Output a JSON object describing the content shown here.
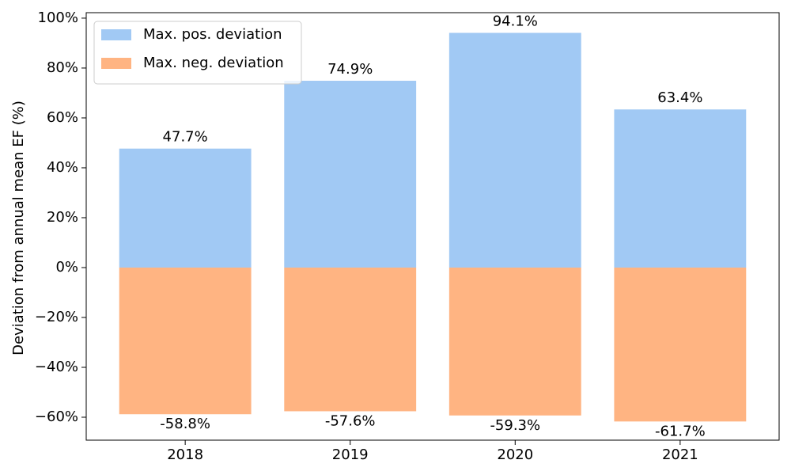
{
  "chart_data": {
    "type": "bar",
    "y_label": "Deviation from annual mean EF (%)",
    "categories": [
      "2018",
      "2019",
      "2020",
      "2021"
    ],
    "series": [
      {
        "name": "Max. pos. deviation",
        "color": "#a1c9f4",
        "values": [
          47.7,
          74.9,
          94.1,
          63.4
        ],
        "value_labels": [
          "47.7%",
          "74.9%",
          "94.1%",
          "63.4%"
        ]
      },
      {
        "name": "Max. neg. deviation",
        "color": "#ffb482",
        "values": [
          -58.8,
          -57.6,
          -59.3,
          -61.7
        ],
        "value_labels": [
          "-58.8%",
          "-57.6%",
          "-59.3%",
          "-61.7%"
        ]
      }
    ],
    "ylim": [
      -69.2,
      102.2
    ],
    "yticks": [
      {
        "value": -60,
        "label": "−60%"
      },
      {
        "value": -40,
        "label": "−40%"
      },
      {
        "value": -20,
        "label": "−20%"
      },
      {
        "value": 0,
        "label": "0%"
      },
      {
        "value": 20,
        "label": "20%"
      },
      {
        "value": 40,
        "label": "40%"
      },
      {
        "value": 60,
        "label": "60%"
      },
      {
        "value": 80,
        "label": "80%"
      },
      {
        "value": 100,
        "label": "100%"
      }
    ],
    "legend": "upper left"
  }
}
